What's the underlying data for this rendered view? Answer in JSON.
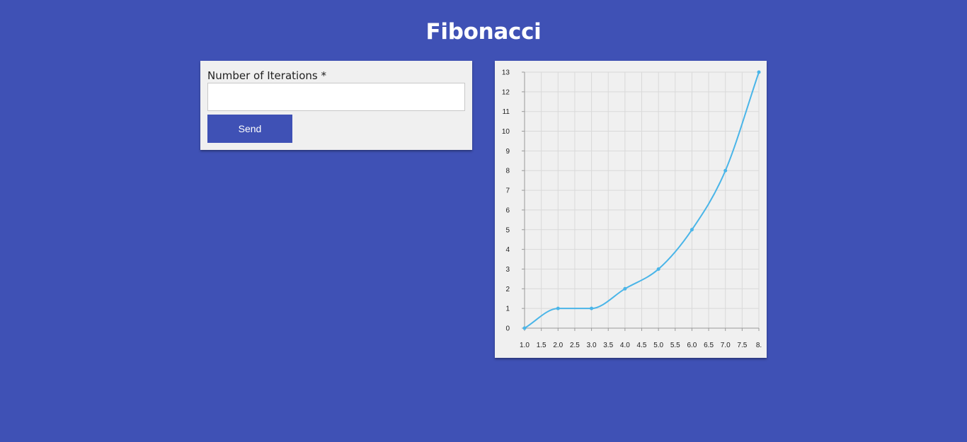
{
  "header": {
    "title": "Fibonacci"
  },
  "form": {
    "label": "Number of Iterations *",
    "input_value": "",
    "input_placeholder": "",
    "send_label": "Send"
  },
  "colors": {
    "background": "#3f51b5",
    "card": "#f0f0f0",
    "line": "#4ab5e8",
    "button": "#3f51b5"
  },
  "chart_data": {
    "type": "line",
    "title": "",
    "xlabel": "",
    "ylabel": "",
    "xlim": [
      1,
      8
    ],
    "ylim": [
      0,
      13
    ],
    "grid": true,
    "smooth": true,
    "x_tick_labels": [
      "1.0",
      "1.5",
      "2.0",
      "2.5",
      "3.0",
      "3.5",
      "4.0",
      "4.5",
      "5.0",
      "5.5",
      "6.0",
      "6.5",
      "7.0",
      "7.5",
      "8."
    ],
    "y_tick_labels": [
      "0",
      "1",
      "2",
      "3",
      "4",
      "5",
      "6",
      "7",
      "8",
      "9",
      "10",
      "11",
      "12",
      "13"
    ],
    "series": [
      {
        "x": [
          1,
          2,
          3,
          4,
          5,
          6,
          7,
          8
        ],
        "values": [
          0,
          1,
          1,
          2,
          3,
          5,
          8,
          13
        ]
      }
    ]
  }
}
